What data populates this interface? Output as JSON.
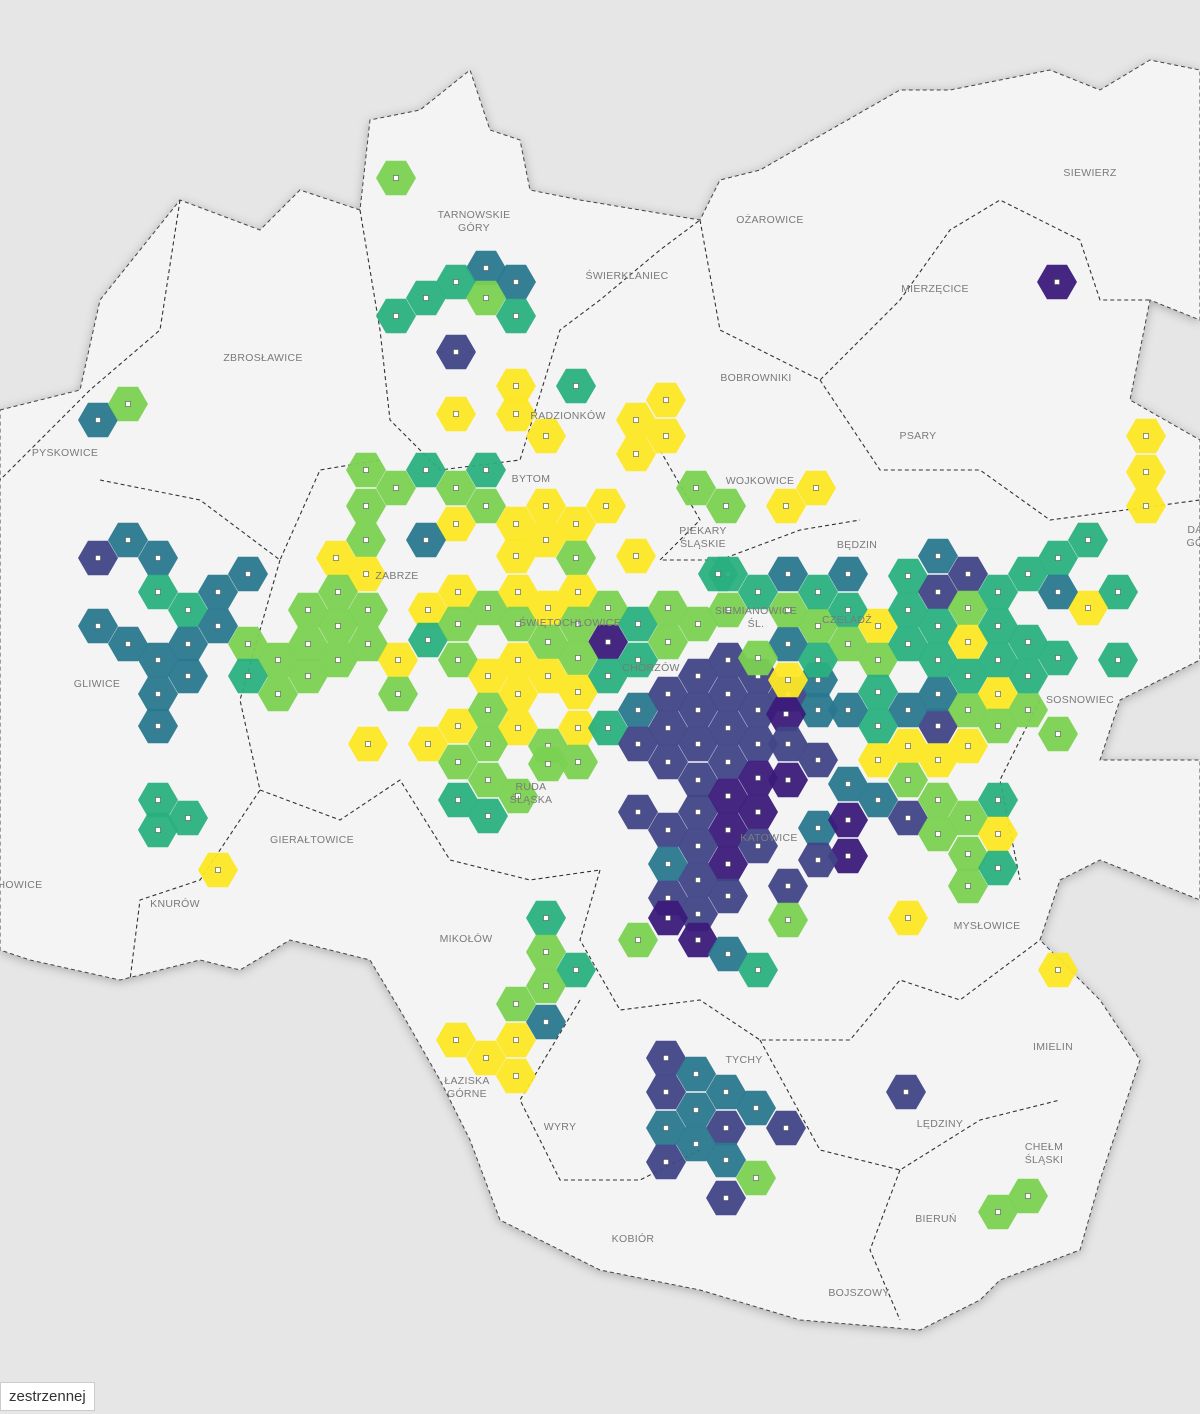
{
  "labels": [
    {
      "lines": [
        "TARNOWSKIE",
        "GÓRY"
      ]
    },
    {
      "lines": [
        "ŚWIERKLANIEC"
      ]
    },
    {
      "lines": [
        "OŻAROWICE"
      ]
    },
    {
      "lines": [
        "SIEWIERZ"
      ]
    },
    {
      "lines": [
        "MIERZĘCICE"
      ]
    },
    {
      "lines": [
        "ZBROSŁAWICE"
      ]
    },
    {
      "lines": [
        "BOBROWNIKI"
      ]
    },
    {
      "lines": [
        "RADZIONKÓW"
      ]
    },
    {
      "lines": [
        "PSARY"
      ]
    },
    {
      "lines": [
        "PYSKOWICE"
      ]
    },
    {
      "lines": [
        "BYTOM"
      ]
    },
    {
      "lines": [
        "WOJKOWICE"
      ]
    },
    {
      "lines": [
        "PIEKARY",
        "ŚLĄSKIE"
      ]
    },
    {
      "lines": [
        "BĘDZIN"
      ]
    },
    {
      "lines": [
        "ZABRZE"
      ]
    },
    {
      "lines": [
        "ŚWIĘTOCHŁOWICE"
      ]
    },
    {
      "lines": [
        "SIEMIANOWICE",
        "ŚL."
      ]
    },
    {
      "lines": [
        "CZELADŹ"
      ]
    },
    {
      "lines": [
        "CHORZÓW"
      ]
    },
    {
      "lines": [
        "GLIWICE"
      ]
    },
    {
      "lines": [
        "SOSNOWIEC"
      ]
    },
    {
      "lines": [
        "RUDA",
        "ŚLĄSKA"
      ]
    },
    {
      "lines": [
        "KATOWICE"
      ]
    },
    {
      "lines": [
        "GIERAŁTOWICE"
      ]
    },
    {
      "lines": [
        "HOWICE"
      ]
    },
    {
      "lines": [
        "KNURÓW"
      ]
    },
    {
      "lines": [
        "MYSŁOWICE"
      ]
    },
    {
      "lines": [
        "MIKOŁÓW"
      ]
    },
    {
      "lines": [
        "IMIELIN"
      ]
    },
    {
      "lines": [
        "TYCHY"
      ]
    },
    {
      "lines": [
        "ŁAZISKA",
        "GÓRNE"
      ]
    },
    {
      "lines": [
        "WYRY"
      ]
    },
    {
      "lines": [
        "LĘDZINY"
      ]
    },
    {
      "lines": [
        "CHEŁM",
        "ŚLĄSKI"
      ]
    },
    {
      "lines": [
        "BIERUŃ"
      ]
    },
    {
      "lines": [
        "KOBIÓR"
      ]
    },
    {
      "lines": [
        "BOJSZOWY"
      ]
    },
    {
      "lines": [
        "DĄ",
        "GÓ"
      ]
    }
  ],
  "note": "zestrzennej"
}
